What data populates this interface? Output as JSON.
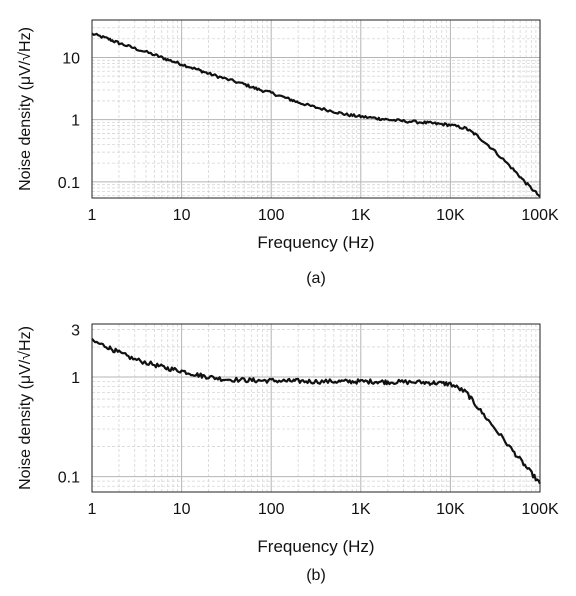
{
  "chart_data": [
    {
      "type": "line",
      "panel_label": "(a)",
      "title": "",
      "xlabel": "Frequency (Hz)",
      "ylabel": "Noise density (μV/√Hz)",
      "xscale": "log",
      "yscale": "log",
      "xlim": [
        1,
        100000
      ],
      "ylim": [
        0.055,
        40
      ],
      "grid": true,
      "x_ticks": [
        {
          "value": 1,
          "label": "1"
        },
        {
          "value": 10,
          "label": "10"
        },
        {
          "value": 100,
          "label": "100"
        },
        {
          "value": 1000,
          "label": "1K"
        },
        {
          "value": 10000,
          "label": "10K"
        },
        {
          "value": 100000,
          "label": "100K"
        }
      ],
      "y_ticks": [
        {
          "value": 0.1,
          "label": "0.1"
        },
        {
          "value": 1,
          "label": "1"
        },
        {
          "value": 10,
          "label": "10"
        }
      ],
      "series": [
        {
          "color": "#111111",
          "x": [
            1,
            1.5,
            2,
            3,
            5,
            7,
            10,
            15,
            20,
            30,
            50,
            70,
            100,
            150,
            200,
            300,
            500,
            700,
            1000,
            1500,
            2000,
            3000,
            5000,
            7000,
            10000,
            15000,
            20000,
            30000,
            50000,
            70000,
            100000
          ],
          "y": [
            24,
            20,
            17,
            14,
            11,
            9.2,
            7.8,
            6.4,
            5.5,
            4.6,
            3.7,
            3.1,
            2.7,
            2.2,
            1.9,
            1.6,
            1.35,
            1.2,
            1.12,
            1.05,
            1.0,
            0.95,
            0.9,
            0.86,
            0.82,
            0.72,
            0.55,
            0.33,
            0.16,
            0.095,
            0.058
          ]
        }
      ]
    },
    {
      "type": "line",
      "panel_label": "(b)",
      "title": "",
      "xlabel": "Frequency (Hz)",
      "ylabel": "Noise density (μV/√Hz)",
      "xscale": "log",
      "yscale": "log",
      "xlim": [
        1,
        100000
      ],
      "ylim": [
        0.07,
        3.4
      ],
      "grid": true,
      "x_ticks": [
        {
          "value": 1,
          "label": "1"
        },
        {
          "value": 10,
          "label": "10"
        },
        {
          "value": 100,
          "label": "100"
        },
        {
          "value": 1000,
          "label": "1K"
        },
        {
          "value": 10000,
          "label": "10K"
        },
        {
          "value": 100000,
          "label": "100K"
        }
      ],
      "y_ticks": [
        {
          "value": 0.1,
          "label": "0.1"
        },
        {
          "value": 1,
          "label": "1"
        },
        {
          "value": 3,
          "label": "3"
        }
      ],
      "series": [
        {
          "color": "#111111",
          "x": [
            1,
            1.5,
            2,
            3,
            5,
            7,
            10,
            15,
            20,
            30,
            50,
            70,
            100,
            150,
            200,
            300,
            500,
            700,
            1000,
            1500,
            2000,
            3000,
            5000,
            7000,
            10000,
            15000,
            20000,
            30000,
            50000,
            70000,
            100000
          ],
          "y": [
            2.3,
            2.0,
            1.75,
            1.5,
            1.32,
            1.22,
            1.15,
            1.05,
            1.0,
            0.95,
            0.93,
            0.92,
            0.92,
            0.91,
            0.91,
            0.9,
            0.9,
            0.9,
            0.9,
            0.9,
            0.89,
            0.89,
            0.88,
            0.87,
            0.85,
            0.7,
            0.5,
            0.32,
            0.18,
            0.125,
            0.085
          ]
        }
      ]
    }
  ]
}
